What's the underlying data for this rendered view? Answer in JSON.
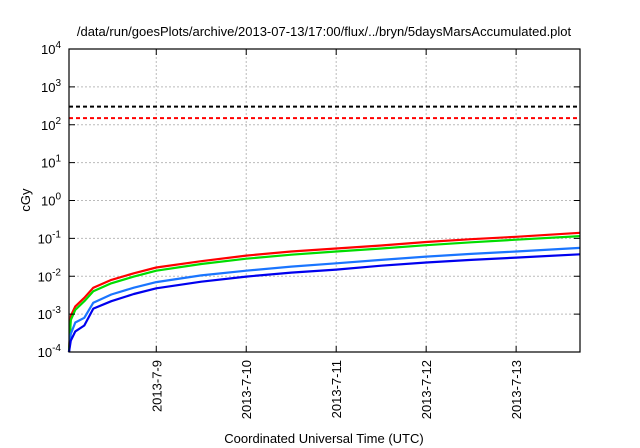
{
  "chart_data": {
    "type": "line",
    "title": "/data/run/goesPlots/archive/2013-07-13/17:00/flux/../bryn/5daysMarsAccumulated.plot",
    "xlabel": "Coordinated Universal Time (UTC)",
    "ylabel": "cGy",
    "x_units": "days since 2013-07-08 00:00 UTC",
    "xlim": [
      0.03,
      5.71
    ],
    "ylim": [
      0.0001,
      10000
    ],
    "yscale": "log",
    "grid": true,
    "x_ticks": [
      {
        "value": 1,
        "label": "2013-7-9"
      },
      {
        "value": 2,
        "label": "2013-7-10"
      },
      {
        "value": 3,
        "label": "2013-7-11"
      },
      {
        "value": 4,
        "label": "2013-7-12"
      },
      {
        "value": 5,
        "label": "2013-7-13"
      }
    ],
    "y_ticks": [
      {
        "value": 0.0001,
        "base": "10",
        "exp": "-4"
      },
      {
        "value": 0.001,
        "base": "10",
        "exp": "-3"
      },
      {
        "value": 0.01,
        "base": "10",
        "exp": "-2"
      },
      {
        "value": 0.1,
        "base": "10",
        "exp": "-1"
      },
      {
        "value": 1,
        "base": "10",
        "exp": "0"
      },
      {
        "value": 10,
        "base": "10",
        "exp": "1"
      },
      {
        "value": 100,
        "base": "10",
        "exp": "2"
      },
      {
        "value": 1000,
        "base": "10",
        "exp": "3"
      },
      {
        "value": 10000,
        "base": "10",
        "exp": "4"
      }
    ],
    "thresholds": [
      {
        "value": 300,
        "color": "#000000",
        "style": "dashed"
      },
      {
        "value": 150,
        "color": "#ff0000",
        "style": "dashed"
      }
    ],
    "x": [
      0.03,
      0.05,
      0.1,
      0.2,
      0.3,
      0.5,
      0.75,
      1,
      1.5,
      2,
      2.5,
      3,
      3.5,
      4,
      4.5,
      5,
      5.71
    ],
    "series": [
      {
        "name": "red",
        "color": "#ff0000",
        "values": [
          0.0001,
          0.0009,
          0.0016,
          0.0027,
          0.005,
          0.008,
          0.012,
          0.017,
          0.025,
          0.035,
          0.045,
          0.054,
          0.065,
          0.08,
          0.095,
          0.11,
          0.14
        ]
      },
      {
        "name": "green",
        "color": "#00dd00",
        "values": [
          0.0001,
          0.0007,
          0.0013,
          0.0022,
          0.004,
          0.0065,
          0.0098,
          0.014,
          0.021,
          0.029,
          0.037,
          0.045,
          0.054,
          0.066,
          0.079,
          0.092,
          0.115
        ]
      },
      {
        "name": "light-blue",
        "color": "#1a75ff",
        "values": [
          0.0001,
          0.0003,
          0.0006,
          0.0008,
          0.002,
          0.0033,
          0.005,
          0.007,
          0.0105,
          0.014,
          0.018,
          0.022,
          0.027,
          0.033,
          0.039,
          0.045,
          0.056
        ]
      },
      {
        "name": "blue",
        "color": "#0000ee",
        "values": [
          0.0001,
          0.0002,
          0.00035,
          0.0005,
          0.0014,
          0.0022,
          0.0034,
          0.0048,
          0.0072,
          0.0098,
          0.0125,
          0.015,
          0.019,
          0.023,
          0.027,
          0.031,
          0.038
        ]
      }
    ]
  }
}
